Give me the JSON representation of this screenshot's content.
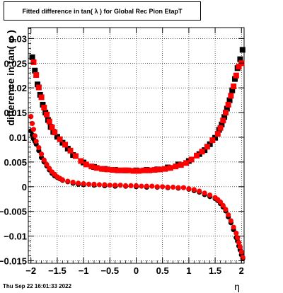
{
  "chart_data": {
    "type": "scatter",
    "title": "Fitted difference in tan( λ ) for Global Rec Pion EtapT",
    "xlabel": "η",
    "ylabel": "difference in tan( φ )",
    "xlim": [
      -2.05,
      2.05
    ],
    "ylim": [
      -0.0155,
      0.0322
    ],
    "x_ticks": [
      -2,
      -1.5,
      -1,
      -0.5,
      0,
      0.5,
      1,
      1.5,
      2
    ],
    "x_tick_labels": [
      "−2",
      "−1.5",
      "−1",
      "−0.5",
      "0",
      "0.5",
      "1",
      "1.5",
      "2"
    ],
    "y_ticks": [
      -0.015,
      -0.01,
      -0.005,
      0,
      0.005,
      0.01,
      0.015,
      0.02,
      0.025,
      0.03
    ],
    "y_tick_labels": [
      "−0.015",
      "−0.01",
      "−0.005",
      "0",
      "0.005",
      "0.01",
      "0.015",
      "0.02",
      "0.025",
      "0.03"
    ],
    "grid": true,
    "series": [
      {
        "marker": "square",
        "color": "#000000",
        "x": [
          -1.975,
          -1.925,
          -1.875,
          -1.825,
          -1.775,
          -1.725,
          -1.675,
          -1.625,
          -1.575,
          -1.5,
          -1.4,
          -1.3,
          -1.2,
          -1.0,
          -0.8,
          -0.6,
          -0.4,
          -0.2,
          0.0,
          0.2,
          0.4,
          0.6,
          0.8,
          1.0,
          1.2,
          1.3,
          1.4,
          1.5,
          1.575,
          1.625,
          1.675,
          1.725,
          1.775,
          1.825,
          1.875,
          1.925,
          1.975,
          2.02
        ],
        "values": [
          0.0262,
          0.0235,
          0.0207,
          0.0186,
          0.0166,
          0.015,
          0.0135,
          0.0121,
          0.0111,
          0.0101,
          0.0089,
          0.0077,
          0.0064,
          0.0049,
          0.004,
          0.0036,
          0.0034,
          0.0033,
          0.0033,
          0.0034,
          0.0035,
          0.0039,
          0.0045,
          0.0052,
          0.0066,
          0.0074,
          0.0086,
          0.0099,
          0.0115,
          0.0126,
          0.0141,
          0.0158,
          0.0175,
          0.0195,
          0.0218,
          0.024,
          0.0258,
          0.0277
        ]
      },
      {
        "marker": "square",
        "color": "#ff0000",
        "x": [
          -1.95,
          -1.9,
          -1.85,
          -1.8,
          -1.75,
          -1.7,
          -1.65,
          -1.6,
          -1.55,
          -1.45,
          -1.35,
          -1.25,
          -1.15,
          -1.05,
          -0.95,
          -0.85,
          -0.75,
          -0.65,
          -0.55,
          -0.45,
          -0.35,
          -0.25,
          -0.15,
          -0.05,
          0.05,
          0.15,
          0.25,
          0.35,
          0.45,
          0.55,
          0.65,
          0.75,
          0.85,
          0.95,
          1.05,
          1.15,
          1.25,
          1.35,
          1.45,
          1.55,
          1.6,
          1.65,
          1.7,
          1.75,
          1.8,
          1.85,
          1.9,
          1.95,
          2.0
        ],
        "values": [
          0.0252,
          0.0226,
          0.0201,
          0.0181,
          0.016,
          0.0146,
          0.0132,
          0.012,
          0.011,
          0.0096,
          0.0085,
          0.0073,
          0.0062,
          0.0052,
          0.0045,
          0.0041,
          0.0038,
          0.0036,
          0.0035,
          0.0034,
          0.0033,
          0.0033,
          0.0033,
          0.0032,
          0.0032,
          0.0033,
          0.0033,
          0.0034,
          0.0035,
          0.0036,
          0.0038,
          0.0041,
          0.0044,
          0.0048,
          0.0055,
          0.0063,
          0.0071,
          0.0081,
          0.0094,
          0.0107,
          0.0119,
          0.0134,
          0.015,
          0.0166,
          0.0184,
          0.0203,
          0.0225,
          0.0243,
          0.025
        ]
      },
      {
        "marker": "circle",
        "color": "#000000",
        "x": [
          -2.0,
          -1.975,
          -1.95,
          -1.925,
          -1.9,
          -1.85,
          -1.8,
          -1.75,
          -1.7,
          -1.65,
          -1.6,
          -1.55,
          -1.5,
          -1.45,
          -1.4,
          -1.3,
          -1.2,
          -1.1,
          -1.0,
          -0.8,
          -0.6,
          -0.4,
          -0.2,
          0.0,
          0.2,
          0.4,
          0.6,
          0.8,
          1.0,
          1.1,
          1.2,
          1.3,
          1.4,
          1.5,
          1.55,
          1.6,
          1.65,
          1.7,
          1.75,
          1.8,
          1.85,
          1.9,
          1.925,
          1.95,
          1.975,
          2.0,
          2.025
        ],
        "values": [
          0.0113,
          0.0105,
          0.0097,
          0.0092,
          0.0086,
          0.0073,
          0.0059,
          0.005,
          0.0042,
          0.0034,
          0.0027,
          0.0022,
          0.0019,
          0.0016,
          0.0013,
          0.001,
          0.0007,
          0.0005,
          0.0004,
          0.0003,
          0.0002,
          0.0001,
          0.0001,
          0.0,
          -0.0001,
          -0.0001,
          -0.0002,
          -0.0003,
          -0.0005,
          -0.0008,
          -0.0011,
          -0.0016,
          -0.002,
          -0.0024,
          -0.0028,
          -0.0034,
          -0.0041,
          -0.0049,
          -0.0061,
          -0.0073,
          -0.0087,
          -0.0103,
          -0.011,
          -0.012,
          -0.0128,
          -0.0138,
          -0.0145
        ]
      },
      {
        "marker": "circle",
        "color": "#ff0000",
        "x": [
          -2.0,
          -1.975,
          -1.95,
          -1.925,
          -1.9,
          -1.85,
          -1.8,
          -1.75,
          -1.7,
          -1.65,
          -1.6,
          -1.55,
          -1.5,
          -1.45,
          -1.4,
          -1.3,
          -1.2,
          -1.1,
          -1.0,
          -0.9,
          -0.8,
          -0.7,
          -0.6,
          -0.5,
          -0.4,
          -0.3,
          -0.2,
          -0.1,
          0.0,
          0.1,
          0.2,
          0.3,
          0.4,
          0.5,
          0.6,
          0.7,
          0.8,
          0.9,
          1.0,
          1.1,
          1.2,
          1.3,
          1.4,
          1.5,
          1.55,
          1.6,
          1.65,
          1.7,
          1.75,
          1.8,
          1.85,
          1.9,
          1.925,
          1.95,
          1.975,
          2.0,
          2.025
        ],
        "values": [
          0.0142,
          0.0128,
          0.0116,
          0.0103,
          0.0092,
          0.0079,
          0.0066,
          0.0054,
          0.0045,
          0.0037,
          0.003,
          0.0025,
          0.002,
          0.0017,
          0.0014,
          0.0011,
          0.0009,
          0.0007,
          0.0006,
          0.0005,
          0.0005,
          0.0004,
          0.0004,
          0.0003,
          0.0003,
          0.0003,
          0.0002,
          0.0002,
          0.0002,
          0.0001,
          0.0001,
          0.0001,
          0.0,
          0.0,
          -0.0001,
          -0.0001,
          -0.0002,
          -0.0002,
          -0.0004,
          -0.0006,
          -0.0009,
          -0.0013,
          -0.0017,
          -0.0022,
          -0.0026,
          -0.0031,
          -0.0038,
          -0.0046,
          -0.0057,
          -0.0069,
          -0.0082,
          -0.0094,
          -0.0103,
          -0.0113,
          -0.0122,
          -0.0132,
          -0.0143
        ]
      }
    ]
  },
  "footer": {
    "datestamp": "Thu Sep 22 16:01:33 2022"
  }
}
